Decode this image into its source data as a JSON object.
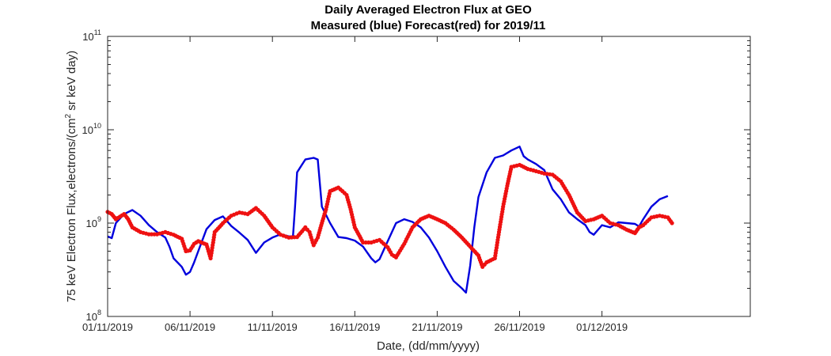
{
  "chart_data": {
    "type": "line",
    "title": "Daily Averaged Electron Flux at GEO",
    "subtitle": "Measured (blue) Forecast(red) for 2019/11",
    "xlabel": "Date, (dd/mm/yyyy)",
    "ylabel": {
      "prefix": "75 keV Electron Flux,electrons/(cm",
      "sup": "2",
      "suffix": " sr keV day)"
    },
    "x_range": [
      "2019-11-01",
      "2019-12-10"
    ],
    "x_ticks": [
      {
        "date": "2019-11-01",
        "label": "01/11/2019"
      },
      {
        "date": "2019-11-06",
        "label": "06/11/2019"
      },
      {
        "date": "2019-11-11",
        "label": "11/11/2019"
      },
      {
        "date": "2019-11-16",
        "label": "16/11/2019"
      },
      {
        "date": "2019-11-21",
        "label": "21/11/2019"
      },
      {
        "date": "2019-11-26",
        "label": "26/11/2019"
      },
      {
        "date": "2019-12-01",
        "label": "01/12/2019"
      }
    ],
    "y_scale": "log",
    "ylim": [
      100000000,
      100000000000
    ],
    "y_ticks": [
      {
        "value": 100000000,
        "base": "10",
        "exp": "8"
      },
      {
        "value": 1000000000,
        "base": "10",
        "exp": "9"
      },
      {
        "value": 10000000000,
        "base": "10",
        "exp": "10"
      },
      {
        "value": 100000000000,
        "base": "10",
        "exp": "11"
      }
    ],
    "grid": false,
    "series": [
      {
        "style": "line",
        "color": "#0000dd",
        "points": [
          [
            "2019-11-01",
            720000000
          ],
          [
            "2019-11-01 06:00",
            690000000
          ],
          [
            "2019-11-01 12:00",
            1000000000
          ],
          [
            "2019-11-02",
            1250000000
          ],
          [
            "2019-11-02 12:00",
            1380000000
          ],
          [
            "2019-11-03",
            1200000000
          ],
          [
            "2019-11-03 12:00",
            950000000
          ],
          [
            "2019-11-04",
            800000000
          ],
          [
            "2019-11-04 12:00",
            700000000
          ],
          [
            "2019-11-04 18:00",
            560000000
          ],
          [
            "2019-11-05",
            420000000
          ],
          [
            "2019-11-05 12:00",
            340000000
          ],
          [
            "2019-11-05 18:00",
            280000000
          ],
          [
            "2019-11-06",
            300000000
          ],
          [
            "2019-11-06 06:00",
            380000000
          ],
          [
            "2019-11-06 12:00",
            500000000
          ],
          [
            "2019-11-07",
            860000000
          ],
          [
            "2019-11-07 12:00",
            1080000000
          ],
          [
            "2019-11-08",
            1180000000
          ],
          [
            "2019-11-08 12:00",
            930000000
          ],
          [
            "2019-11-09",
            790000000
          ],
          [
            "2019-11-09 12:00",
            660000000
          ],
          [
            "2019-11-10",
            480000000
          ],
          [
            "2019-11-10 12:00",
            620000000
          ],
          [
            "2019-11-11",
            700000000
          ],
          [
            "2019-11-11 12:00",
            760000000
          ],
          [
            "2019-11-12",
            720000000
          ],
          [
            "2019-11-12 06:00",
            720000000
          ],
          [
            "2019-11-12 09:00",
            1500000000
          ],
          [
            "2019-11-12 12:00",
            3500000000
          ],
          [
            "2019-11-13",
            4800000000
          ],
          [
            "2019-11-13 12:00",
            5000000000
          ],
          [
            "2019-11-13 18:00",
            4800000000
          ],
          [
            "2019-11-14",
            1500000000
          ],
          [
            "2019-11-14 12:00",
            1000000000
          ],
          [
            "2019-11-15",
            710000000
          ],
          [
            "2019-11-15 12:00",
            690000000
          ],
          [
            "2019-11-16",
            650000000
          ],
          [
            "2019-11-16 12:00",
            560000000
          ],
          [
            "2019-11-17",
            420000000
          ],
          [
            "2019-11-17 06:00",
            380000000
          ],
          [
            "2019-11-17 12:00",
            410000000
          ],
          [
            "2019-11-18",
            640000000
          ],
          [
            "2019-11-18 12:00",
            1000000000
          ],
          [
            "2019-11-19",
            1100000000
          ],
          [
            "2019-11-19 12:00",
            1030000000
          ],
          [
            "2019-11-20",
            900000000
          ],
          [
            "2019-11-20 12:00",
            700000000
          ],
          [
            "2019-11-21",
            500000000
          ],
          [
            "2019-11-21 12:00",
            340000000
          ],
          [
            "2019-11-22",
            240000000
          ],
          [
            "2019-11-22 12:00",
            200000000
          ],
          [
            "2019-11-22 18:00",
            180000000
          ],
          [
            "2019-11-23",
            350000000
          ],
          [
            "2019-11-23 06:00",
            900000000
          ],
          [
            "2019-11-23 12:00",
            1900000000
          ],
          [
            "2019-11-24",
            3500000000
          ],
          [
            "2019-11-24 12:00",
            5000000000
          ],
          [
            "2019-11-25",
            5300000000
          ],
          [
            "2019-11-25 12:00",
            6000000000
          ],
          [
            "2019-11-26",
            6600000000
          ],
          [
            "2019-11-26 06:00",
            5200000000
          ],
          [
            "2019-11-26 12:00",
            4800000000
          ],
          [
            "2019-11-27",
            4300000000
          ],
          [
            "2019-11-27 12:00",
            3700000000
          ],
          [
            "2019-11-28",
            2300000000
          ],
          [
            "2019-11-28 12:00",
            1800000000
          ],
          [
            "2019-11-29",
            1300000000
          ],
          [
            "2019-11-29 12:00",
            1100000000
          ],
          [
            "2019-11-30",
            950000000
          ],
          [
            "2019-11-30 06:00",
            800000000
          ],
          [
            "2019-11-30 12:00",
            750000000
          ],
          [
            "2019-12-01",
            950000000
          ],
          [
            "2019-12-01 12:00",
            900000000
          ],
          [
            "2019-12-02",
            1020000000
          ],
          [
            "2019-12-02 12:00",
            1000000000
          ],
          [
            "2019-12-03",
            980000000
          ],
          [
            "2019-12-03 06:00",
            920000000
          ],
          [
            "2019-12-03 12:00",
            1100000000
          ],
          [
            "2019-12-04",
            1500000000
          ],
          [
            "2019-12-04 12:00",
            1800000000
          ],
          [
            "2019-12-05",
            1950000000
          ]
        ]
      },
      {
        "style": "markers",
        "color": "#ee1111",
        "points": [
          [
            "2019-11-01",
            1320000000
          ],
          [
            "2019-11-01 06:00",
            1250000000
          ],
          [
            "2019-11-01 12:00",
            1100000000
          ],
          [
            "2019-11-02",
            1250000000
          ],
          [
            "2019-11-02 06:00",
            1100000000
          ],
          [
            "2019-11-02 12:00",
            900000000
          ],
          [
            "2019-11-03",
            800000000
          ],
          [
            "2019-11-03 12:00",
            760000000
          ],
          [
            "2019-11-04",
            760000000
          ],
          [
            "2019-11-04 12:00",
            800000000
          ],
          [
            "2019-11-05",
            750000000
          ],
          [
            "2019-11-05 12:00",
            680000000
          ],
          [
            "2019-11-05 18:00",
            500000000
          ],
          [
            "2019-11-06",
            510000000
          ],
          [
            "2019-11-06 06:00",
            600000000
          ],
          [
            "2019-11-06 12:00",
            640000000
          ],
          [
            "2019-11-07",
            590000000
          ],
          [
            "2019-11-07 06:00",
            420000000
          ],
          [
            "2019-11-07 12:00",
            800000000
          ],
          [
            "2019-11-08",
            1000000000
          ],
          [
            "2019-11-08 12:00",
            1200000000
          ],
          [
            "2019-11-09",
            1300000000
          ],
          [
            "2019-11-09 12:00",
            1250000000
          ],
          [
            "2019-11-10",
            1450000000
          ],
          [
            "2019-11-10 12:00",
            1200000000
          ],
          [
            "2019-11-11",
            900000000
          ],
          [
            "2019-11-11 12:00",
            750000000
          ],
          [
            "2019-11-12",
            700000000
          ],
          [
            "2019-11-12 12:00",
            710000000
          ],
          [
            "2019-11-13",
            900000000
          ],
          [
            "2019-11-13 06:00",
            800000000
          ],
          [
            "2019-11-13 12:00",
            580000000
          ],
          [
            "2019-11-13 18:00",
            700000000
          ],
          [
            "2019-11-14",
            1000000000
          ],
          [
            "2019-11-14 06:00",
            1400000000
          ],
          [
            "2019-11-14 12:00",
            2200000000
          ],
          [
            "2019-11-15",
            2400000000
          ],
          [
            "2019-11-15 06:00",
            2200000000
          ],
          [
            "2019-11-15 12:00",
            2000000000
          ],
          [
            "2019-11-15 18:00",
            1400000000
          ],
          [
            "2019-11-16",
            900000000
          ],
          [
            "2019-11-16 12:00",
            620000000
          ],
          [
            "2019-11-17",
            620000000
          ],
          [
            "2019-11-17 12:00",
            660000000
          ],
          [
            "2019-11-18",
            550000000
          ],
          [
            "2019-11-18 06:00",
            460000000
          ],
          [
            "2019-11-18 12:00",
            430000000
          ],
          [
            "2019-11-19",
            600000000
          ],
          [
            "2019-11-19 12:00",
            900000000
          ],
          [
            "2019-11-20",
            1100000000
          ],
          [
            "2019-11-20 12:00",
            1200000000
          ],
          [
            "2019-11-21",
            1100000000
          ],
          [
            "2019-11-21 12:00",
            1000000000
          ],
          [
            "2019-11-22",
            850000000
          ],
          [
            "2019-11-22 12:00",
            700000000
          ],
          [
            "2019-11-23",
            560000000
          ],
          [
            "2019-11-23 12:00",
            450000000
          ],
          [
            "2019-11-23 18:00",
            340000000
          ],
          [
            "2019-11-24",
            380000000
          ],
          [
            "2019-11-24 12:00",
            420000000
          ],
          [
            "2019-11-24 18:00",
            800000000
          ],
          [
            "2019-11-25",
            1500000000
          ],
          [
            "2019-11-25 06:00",
            2500000000
          ],
          [
            "2019-11-25 12:00",
            4000000000
          ],
          [
            "2019-11-26",
            4200000000
          ],
          [
            "2019-11-26 12:00",
            3800000000
          ],
          [
            "2019-11-27",
            3600000000
          ],
          [
            "2019-11-27 12:00",
            3400000000
          ],
          [
            "2019-11-28",
            3300000000
          ],
          [
            "2019-11-28 12:00",
            2800000000
          ],
          [
            "2019-11-29",
            2000000000
          ],
          [
            "2019-11-29 12:00",
            1300000000
          ],
          [
            "2019-11-30",
            1050000000
          ],
          [
            "2019-11-30 12:00",
            1100000000
          ],
          [
            "2019-12-01",
            1200000000
          ],
          [
            "2019-12-01 12:00",
            1000000000
          ],
          [
            "2019-12-02",
            950000000
          ],
          [
            "2019-12-02 12:00",
            850000000
          ],
          [
            "2019-12-03",
            780000000
          ],
          [
            "2019-12-03 06:00",
            900000000
          ],
          [
            "2019-12-03 12:00",
            950000000
          ],
          [
            "2019-12-04",
            1150000000
          ],
          [
            "2019-12-04 12:00",
            1200000000
          ],
          [
            "2019-12-05",
            1150000000
          ],
          [
            "2019-12-05 06:00",
            1000000000
          ]
        ]
      }
    ]
  }
}
